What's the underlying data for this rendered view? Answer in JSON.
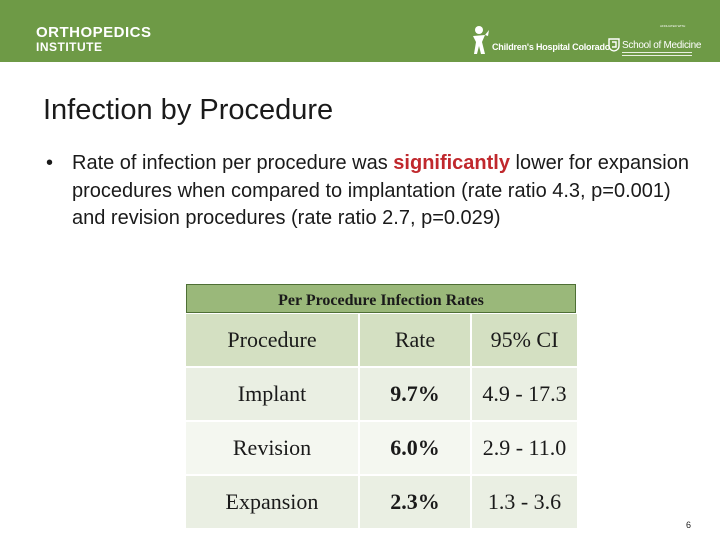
{
  "header": {
    "org_title": "ORTHOPEDICS",
    "org_subtitle": "INSTITUTE",
    "partner_logo_1": "Children's Hospital Colorado",
    "partner_logo_2_affil": "AFFILIATED WITH",
    "partner_logo_2": "School of Medicine",
    "bar_color": "#6e9a46"
  },
  "slide": {
    "title": "Infection by Procedure",
    "bullet": {
      "before": "Rate of infection per procedure was ",
      "emphasis": "significantly",
      "after": " lower for expansion procedures when compared to implantation (rate ratio 4.3, p=0.001) and revision procedures (rate ratio 2.7, p=0.029)",
      "emphasis_color": "#c0282d"
    },
    "page_number": "6"
  },
  "table": {
    "caption": "Per Procedure Infection Rates",
    "headers": [
      "Procedure",
      "Rate",
      "95% CI"
    ],
    "rows": [
      {
        "procedure": "Implant",
        "rate": "9.7%",
        "ci": "4.9 - 17.3"
      },
      {
        "procedure": "Revision",
        "rate": "6.0%",
        "ci": "2.9 - 11.0"
      },
      {
        "procedure": "Expansion",
        "rate": "2.3%",
        "ci": "1.3 - 3.6"
      }
    ]
  },
  "icons": {
    "chc_logo": "child-figure-icon",
    "som_logo": "cu-shield-icon"
  }
}
